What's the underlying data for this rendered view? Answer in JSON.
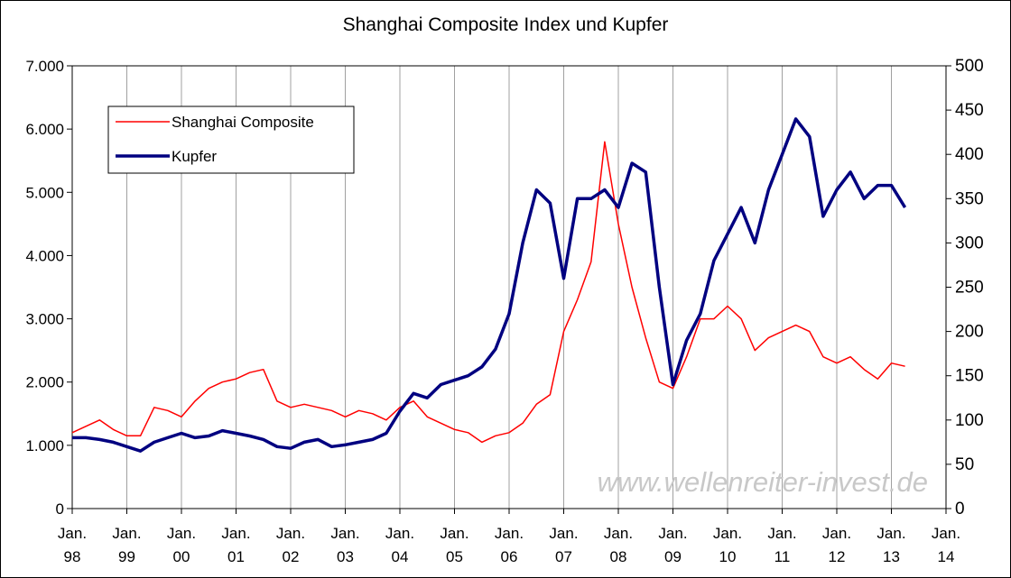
{
  "chart_data": {
    "type": "line",
    "title": "Shanghai Composite Index und Kupfer",
    "annotation": "www.wellenreiter-invest.de",
    "x": [
      1998,
      1998.25,
      1998.5,
      1998.75,
      1999,
      1999.25,
      1999.5,
      1999.75,
      2000,
      2000.25,
      2000.5,
      2000.75,
      2001,
      2001.25,
      2001.5,
      2001.75,
      2002,
      2002.25,
      2002.5,
      2002.75,
      2003,
      2003.25,
      2003.5,
      2003.75,
      2004,
      2004.25,
      2004.5,
      2004.75,
      2005,
      2005.25,
      2005.5,
      2005.75,
      2006,
      2006.25,
      2006.5,
      2006.75,
      2007,
      2007.25,
      2007.5,
      2007.75,
      2008,
      2008.25,
      2008.5,
      2008.75,
      2009,
      2009.25,
      2009.5,
      2009.75,
      2010,
      2010.25,
      2010.5,
      2010.75,
      2011,
      2011.25,
      2011.5,
      2011.75,
      2012,
      2012.25,
      2012.5,
      2012.75,
      2013,
      2013.25
    ],
    "series": [
      {
        "name": "Shanghai Composite",
        "color": "#ff0000",
        "width": 1.5,
        "values": [
          1200,
          1300,
          1400,
          1250,
          1150,
          1150,
          1600,
          1550,
          1450,
          1700,
          1900,
          2000,
          2050,
          2150,
          2200,
          1700,
          1600,
          1650,
          1600,
          1550,
          1450,
          1550,
          1500,
          1400,
          1600,
          1700,
          1450,
          1350,
          1250,
          1200,
          1050,
          1150,
          1200,
          1350,
          1650,
          1800,
          2800,
          3300,
          3900,
          5800,
          4500,
          3500,
          2700,
          2000,
          1900,
          2400,
          3000,
          3000,
          3200,
          3000,
          2500,
          2700,
          2800,
          2900,
          2800,
          2400,
          2300,
          2400,
          2200,
          2050,
          2300,
          2250
        ]
      },
      {
        "name": "Kupfer",
        "color": "#000080",
        "width": 3.5,
        "axis": "y2",
        "values": [
          80,
          80,
          78,
          75,
          70,
          65,
          75,
          80,
          85,
          80,
          82,
          88,
          85,
          82,
          78,
          70,
          68,
          75,
          78,
          70,
          72,
          75,
          78,
          85,
          110,
          130,
          125,
          140,
          145,
          150,
          160,
          180,
          220,
          300,
          360,
          345,
          260,
          350,
          350,
          360,
          340,
          390,
          380,
          250,
          140,
          190,
          220,
          280,
          310,
          340,
          300,
          360,
          400,
          440,
          420,
          330,
          360,
          380,
          350,
          365,
          365,
          340
        ]
      }
    ],
    "xlim": [
      1998,
      2014
    ],
    "xticks": [
      {
        "value": 1998,
        "label": "Jan. 98"
      },
      {
        "value": 1999,
        "label": "Jan. 99"
      },
      {
        "value": 2000,
        "label": "Jan. 00"
      },
      {
        "value": 2001,
        "label": "Jan. 01"
      },
      {
        "value": 2002,
        "label": "Jan. 02"
      },
      {
        "value": 2003,
        "label": "Jan. 03"
      },
      {
        "value": 2004,
        "label": "Jan. 04"
      },
      {
        "value": 2005,
        "label": "Jan. 05"
      },
      {
        "value": 2006,
        "label": "Jan. 06"
      },
      {
        "value": 2007,
        "label": "Jan. 07"
      },
      {
        "value": 2008,
        "label": "Jan. 08"
      },
      {
        "value": 2009,
        "label": "Jan. 09"
      },
      {
        "value": 2010,
        "label": "Jan. 10"
      },
      {
        "value": 2011,
        "label": "Jan. 11"
      },
      {
        "value": 2012,
        "label": "Jan. 12"
      },
      {
        "value": 2013,
        "label": "Jan. 13"
      },
      {
        "value": 2014,
        "label": "Jan. 14"
      }
    ],
    "ylim": [
      0,
      7000
    ],
    "yticks": [
      0,
      {
        "value": 1000,
        "label": "1.000"
      },
      {
        "value": 2000,
        "label": "2.000"
      },
      {
        "value": 3000,
        "label": "3.000"
      },
      {
        "value": 4000,
        "label": "4.000"
      },
      {
        "value": 5000,
        "label": "5.000"
      },
      {
        "value": 6000,
        "label": "6.000"
      },
      {
        "value": 7000,
        "label": "7.000"
      }
    ],
    "y2lim": [
      0,
      500
    ],
    "y2ticks": [
      0,
      50,
      100,
      150,
      200,
      250,
      300,
      350,
      400,
      450,
      500
    ],
    "grid": "x",
    "legend": "upper left"
  }
}
